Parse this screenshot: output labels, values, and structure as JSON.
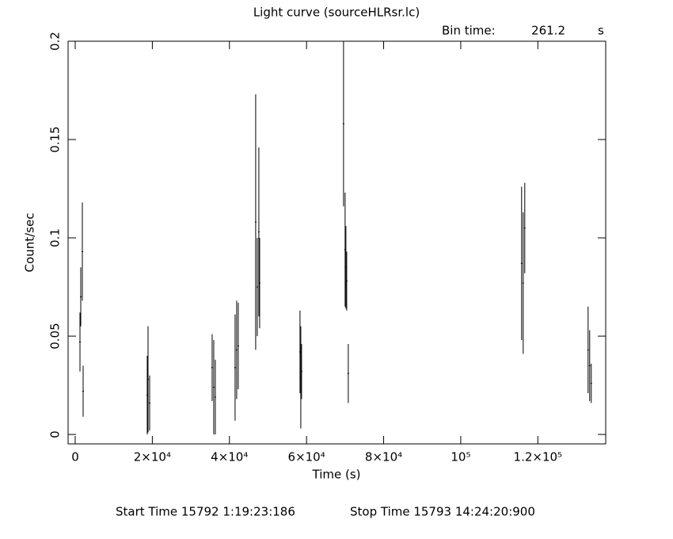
{
  "chart_data": {
    "type": "errorbar",
    "title": "Light curve (sourceHLRsr.lc)",
    "bin_time_label": "Bin time:",
    "bin_time": "261.2",
    "bin_time_unit": "s",
    "xlabel": "Time (s)",
    "ylabel": "Count/sec",
    "start_time": "Start Time 15792  1:19:23:186",
    "stop_time": "Stop Time 15793 14:24:20:900",
    "xlim": [
      -1850,
      137600
    ],
    "ylim": [
      -0.0048,
      0.2
    ],
    "xticks": [
      0,
      {
        "value": 20000,
        "label": "2×10⁴"
      },
      {
        "value": 40000,
        "label": "4×10⁴"
      },
      {
        "value": 60000,
        "label": "6×10⁴"
      },
      {
        "value": 80000,
        "label": "8×10⁴"
      },
      {
        "value": 100000,
        "label": "10⁵"
      },
      {
        "value": 120000,
        "label": "1.2×10⁵"
      }
    ],
    "yticks": [
      0,
      0.05,
      0.1,
      0.15,
      0.2
    ],
    "series": [
      {
        "color": "#000000",
        "x": [
          1232,
          1437,
          1848,
          2053,
          18682,
          18888,
          19298,
          35517,
          35928,
          36338,
          41471,
          41881,
          42292,
          46809,
          47220,
          47630,
          47835,
          58305,
          58511,
          58716,
          69597,
          70008,
          70213,
          70418,
          70829,
          115789,
          116200,
          116610,
          133034,
          133445,
          133856
        ],
        "values": [
          0.047,
          0.07,
          0.093,
          0.022,
          0.02,
          0.028,
          0.016,
          0.034,
          0.024,
          0.019,
          0.034,
          0.043,
          0.045,
          0.108,
          0.075,
          0.103,
          0.077,
          0.042,
          0.029,
          0.032,
          0.158,
          0.094,
          0.085,
          0.078,
          0.031,
          0.087,
          0.077,
          0.105,
          0.043,
          0.035,
          0.026
        ],
        "errors": [
          0.015,
          0.015,
          0.025,
          0.013,
          0.02,
          0.027,
          0.014,
          0.017,
          0.024,
          0.019,
          0.027,
          0.025,
          0.022,
          0.065,
          0.025,
          0.043,
          0.023,
          0.021,
          0.026,
          0.014,
          0.042,
          0.029,
          0.021,
          0.015,
          0.015,
          0.039,
          0.036,
          0.023,
          0.022,
          0.018,
          0.01
        ]
      }
    ]
  }
}
